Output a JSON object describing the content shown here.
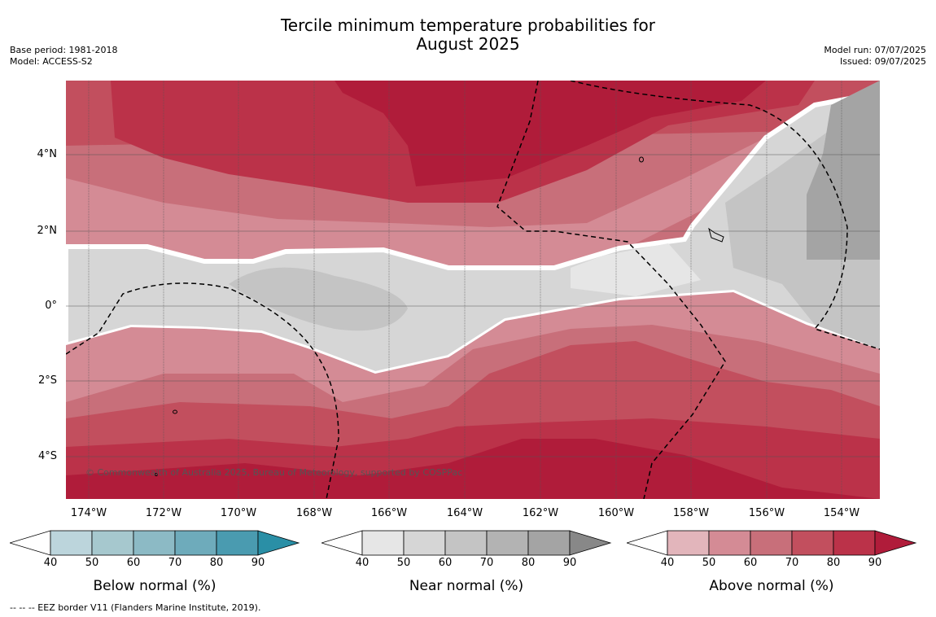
{
  "title": {
    "line1": "Tercile minimum temperature probabilities for",
    "line2": "August 2025"
  },
  "meta_left": {
    "base_period": "Base period: 1981-2018",
    "model": "Model: ACCESS-S2"
  },
  "meta_right": {
    "model_run": "Model run: 07/07/2025",
    "issued": "Issued: 09/07/2025"
  },
  "map": {
    "copyright": "© Commonwealth of Australia 2025, Bureau of Meteorology, supported by COSPPac",
    "x_ticks": [
      "174°W",
      "172°W",
      "170°W",
      "168°W",
      "166°W",
      "164°W",
      "162°W",
      "160°W",
      "158°W",
      "156°W",
      "154°W"
    ],
    "y_ticks": [
      "4°N",
      "2°N",
      "0°",
      "2°S",
      "4°S"
    ]
  },
  "colorbars": [
    {
      "title": "Below normal (%)",
      "ticks": [
        "40",
        "50",
        "60",
        "70",
        "80",
        "90"
      ],
      "colors": [
        "#ffffff",
        "#bcd5dc",
        "#a6c8ce",
        "#8cbac5",
        "#6eabbb",
        "#4a9bb0",
        "#2a8fa6"
      ]
    },
    {
      "title": "Near normal (%)",
      "ticks": [
        "40",
        "50",
        "60",
        "70",
        "80",
        "90"
      ],
      "colors": [
        "#ffffff",
        "#e6e6e6",
        "#d6d6d6",
        "#c4c4c4",
        "#b3b3b3",
        "#a4a4a4",
        "#888888"
      ]
    },
    {
      "title": "Above normal (%)",
      "ticks": [
        "40",
        "50",
        "60",
        "70",
        "80",
        "90"
      ],
      "colors": [
        "#ffffff",
        "#e2b5bb",
        "#d48b95",
        "#c86f7a",
        "#c24f5e",
        "#bb3249",
        "#b01c3a"
      ]
    }
  ],
  "footer": "--  --  -- EEZ border V11 (Flanders Marine Institute, 2019)."
}
